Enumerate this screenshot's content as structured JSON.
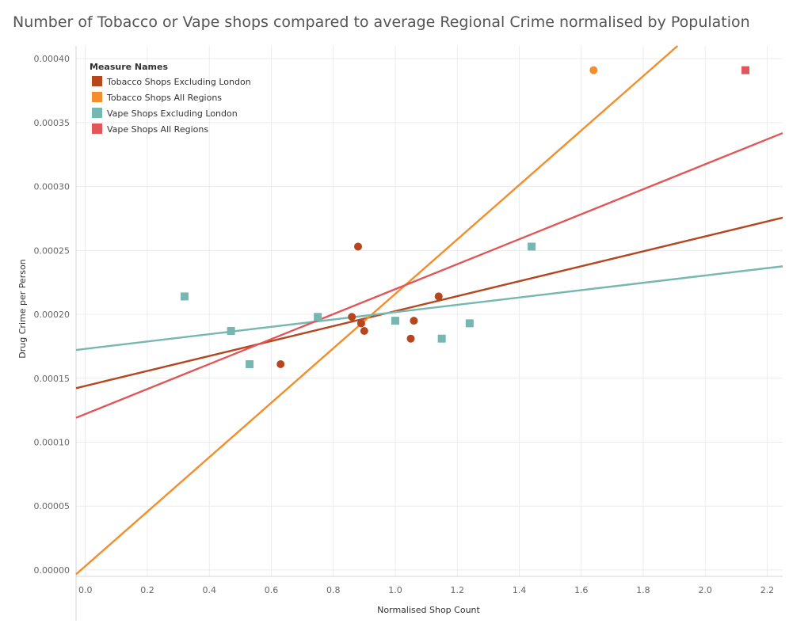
{
  "chart_data": {
    "type": "scatter",
    "title": "Number of Tobacco or Vape shops compared to average Regional Crime normalised by Population",
    "xlabel": "Normalised Shop Count",
    "ylabel": "Drug Crime per Person",
    "xlim": [
      -0.03,
      2.25
    ],
    "ylim": [
      -5e-06,
      0.00041
    ],
    "x_ticks": [
      "0.0",
      "0.2",
      "0.4",
      "0.6",
      "0.8",
      "1.0",
      "1.2",
      "1.4",
      "1.6",
      "1.8",
      "2.0",
      "2.2"
    ],
    "y_ticks": [
      "0.00000",
      "0.00005",
      "0.00010",
      "0.00015",
      "0.00020",
      "0.00025",
      "0.00030",
      "0.00035",
      "0.00040"
    ],
    "grid": true,
    "legend": {
      "title": "Measure Names",
      "placement": "top-left"
    },
    "series": [
      {
        "name": "Tobacco Shops Excluding London",
        "color": "#b5461e",
        "marker": "circle",
        "points": [
          {
            "x": 0.63,
            "y": 0.000161
          },
          {
            "x": 0.86,
            "y": 0.000198
          },
          {
            "x": 0.88,
            "y": 0.000253
          },
          {
            "x": 0.89,
            "y": 0.000193
          },
          {
            "x": 0.9,
            "y": 0.000187
          },
          {
            "x": 1.05,
            "y": 0.000181
          },
          {
            "x": 1.06,
            "y": 0.000195
          },
          {
            "x": 1.14,
            "y": 0.000214
          }
        ],
        "trend": {
          "intercept": 0.000144,
          "slope": 5.85e-05
        }
      },
      {
        "name": "Tobacco Shops All Regions",
        "color": "#f28e2b",
        "marker": "circle",
        "points": [
          {
            "x": 1.64,
            "y": 0.000391
          }
        ],
        "trend": {
          "intercept": 3e-06,
          "slope": 0.000213
        }
      },
      {
        "name": "Vape Shops Excluding London",
        "color": "#76b7b2",
        "marker": "square",
        "points": [
          {
            "x": 0.32,
            "y": 0.000214
          },
          {
            "x": 0.47,
            "y": 0.000187
          },
          {
            "x": 0.53,
            "y": 0.000161
          },
          {
            "x": 0.75,
            "y": 0.000198
          },
          {
            "x": 1.0,
            "y": 0.000195
          },
          {
            "x": 1.15,
            "y": 0.000181
          },
          {
            "x": 1.24,
            "y": 0.000193
          },
          {
            "x": 1.44,
            "y": 0.000253
          }
        ],
        "trend": {
          "intercept": 0.000173,
          "slope": 2.87e-05
        }
      },
      {
        "name": "Vape Shops All Regions",
        "color": "#e15759",
        "marker": "square",
        "points": [
          {
            "x": 2.13,
            "y": 0.000391
          }
        ],
        "trend": {
          "intercept": 0.000122,
          "slope": 9.77e-05
        }
      }
    ]
  }
}
